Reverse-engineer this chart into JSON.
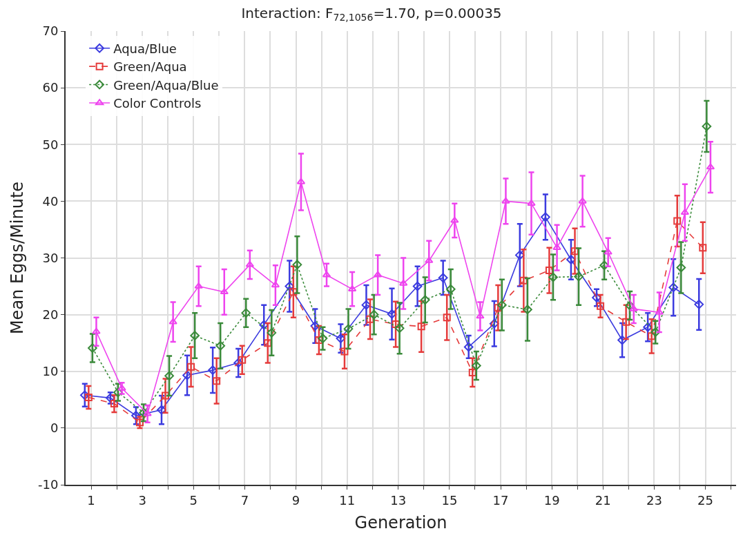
{
  "chart_data": {
    "type": "line",
    "title": "Interaction: F$_{72,1056}$=1.70, p=0.00035",
    "xlabel": "Generation",
    "ylabel": "Mean Eggs/Minute",
    "xlim": [
      0,
      26.2
    ],
    "ylim": [
      -10,
      70
    ],
    "xticks": [
      1,
      {
        "value": 2,
        "label": null
      },
      3,
      {
        "value": 4,
        "label": null
      },
      5,
      {
        "value": 6,
        "label": null
      },
      7,
      {
        "value": 8,
        "label": null
      },
      9,
      {
        "value": 10,
        "label": null
      },
      11,
      {
        "value": 12,
        "label": null
      },
      13,
      {
        "value": 14,
        "label": null
      },
      15,
      {
        "value": 16,
        "label": null
      },
      17,
      {
        "value": 18,
        "label": null
      },
      19,
      {
        "value": 20,
        "label": null
      },
      21,
      {
        "value": 22,
        "label": null
      },
      23,
      {
        "value": 24,
        "label": null
      },
      25,
      {
        "value": 26,
        "label": null
      }
    ],
    "yticks": [
      -10,
      0,
      10,
      20,
      30,
      40,
      50,
      60,
      70
    ],
    "grid": true,
    "legend": "top left",
    "series": [
      {
        "name": "Aqua/Blue",
        "color": "#3b3bdf",
        "marker": "diamond",
        "line_style": "solid",
        "x": [
          0.75,
          1.75,
          2.75,
          3.75,
          4.75,
          5.75,
          6.75,
          7.75,
          8.75,
          9.75,
          10.75,
          11.75,
          12.75,
          13.75,
          14.75,
          15.75,
          16.75,
          17.75,
          18.75,
          19.75,
          20.75,
          21.75,
          22.75,
          23.75,
          24.75
        ],
        "values": [
          5.8,
          5.3,
          2.2,
          3.2,
          9.3,
          10.2,
          11.5,
          18.2,
          25,
          18,
          15.8,
          21.7,
          20.1,
          25,
          26.5,
          14.3,
          18.4,
          30.5,
          37.2,
          29.7,
          23,
          15.5,
          17.8,
          24.8,
          21.8
        ],
        "errors": [
          2,
          1,
          1.5,
          2.5,
          3.5,
          4,
          2.5,
          3.5,
          4.5,
          3,
          2.5,
          3.5,
          4.5,
          3.5,
          3,
          2,
          4,
          5.5,
          4,
          3.5,
          1.5,
          3,
          2.5,
          5,
          4.5
        ]
      },
      {
        "name": "Green/Aqua",
        "color": "#e53b3b",
        "marker": "square",
        "line_style": "dashed",
        "x": [
          0.9,
          1.9,
          2.9,
          3.9,
          4.9,
          5.9,
          6.9,
          7.9,
          8.9,
          9.9,
          10.9,
          11.9,
          12.9,
          13.9,
          14.9,
          15.9,
          16.9,
          17.9,
          18.9,
          19.9,
          20.9,
          21.9,
          22.9,
          23.9,
          24.9
        ],
        "values": [
          5.4,
          4.3,
          1.0,
          5.7,
          10.8,
          8.3,
          12,
          15,
          24,
          15.5,
          13.5,
          19.2,
          18.3,
          17.9,
          19.5,
          9.8,
          21.2,
          26,
          27.8,
          31.2,
          21.5,
          18.7,
          16.2,
          36.5,
          31.8
        ],
        "errors": [
          2,
          1.5,
          1,
          3,
          3.5,
          4,
          2.5,
          3.5,
          4.5,
          2.5,
          3,
          3.5,
          4,
          4.5,
          4,
          2.5,
          4,
          5.5,
          4,
          4,
          2,
          3,
          3,
          4.5,
          4.5
        ]
      },
      {
        "name": "Green/Aqua/Blue",
        "color": "#3a8a3a",
        "marker": "diamond",
        "line_style": "dotted",
        "x": [
          1.05,
          2.05,
          3.05,
          4.05,
          5.05,
          6.05,
          7.05,
          8.05,
          9.05,
          10.05,
          11.05,
          12.05,
          13.05,
          14.05,
          15.05,
          16.05,
          17.05,
          18.05,
          19.05,
          20.05,
          21.05,
          22.05,
          23.05,
          24.05,
          25.05
        ],
        "values": [
          14.1,
          6.3,
          2.7,
          9.2,
          16.3,
          14.5,
          20.3,
          16.8,
          28.8,
          15.8,
          17.5,
          20,
          17.6,
          22.6,
          24.5,
          11,
          21.7,
          20.9,
          26.6,
          26.7,
          28.7,
          21.6,
          16.9,
          28.3,
          53.2
        ],
        "errors": [
          2.5,
          1.5,
          1.5,
          3.5,
          4,
          4,
          2.5,
          4,
          5,
          2,
          3.5,
          3.5,
          4.5,
          4,
          3.5,
          2.5,
          4.5,
          5.5,
          4,
          5,
          2.5,
          2.5,
          2,
          4.5,
          4.5
        ]
      },
      {
        "name": "Color Controls",
        "color": "#ee44ee",
        "marker": "triangle",
        "line_style": "solid",
        "x": [
          1.2,
          2.2,
          3.2,
          4.2,
          5.2,
          6.2,
          7.2,
          8.2,
          9.2,
          10.2,
          11.2,
          12.2,
          13.2,
          14.2,
          15.2,
          16.2,
          17.2,
          18.2,
          19.2,
          20.2,
          21.2,
          22.2,
          23.2,
          24.2,
          25.2
        ],
        "values": [
          17,
          7,
          2.5,
          18.7,
          25,
          24,
          28.8,
          25.2,
          43.4,
          27,
          24.5,
          27,
          25.5,
          29.5,
          36.6,
          19.7,
          40,
          39.6,
          31.8,
          40,
          31,
          21,
          20.4,
          38,
          46
        ],
        "errors": [
          2.5,
          1,
          1.5,
          3.5,
          3.5,
          4,
          2.5,
          3.5,
          5,
          2,
          3,
          3.5,
          4.5,
          3.5,
          3,
          2.5,
          4,
          5.5,
          4,
          4.5,
          2.5,
          2.5,
          3.5,
          5,
          4.5
        ]
      }
    ]
  }
}
